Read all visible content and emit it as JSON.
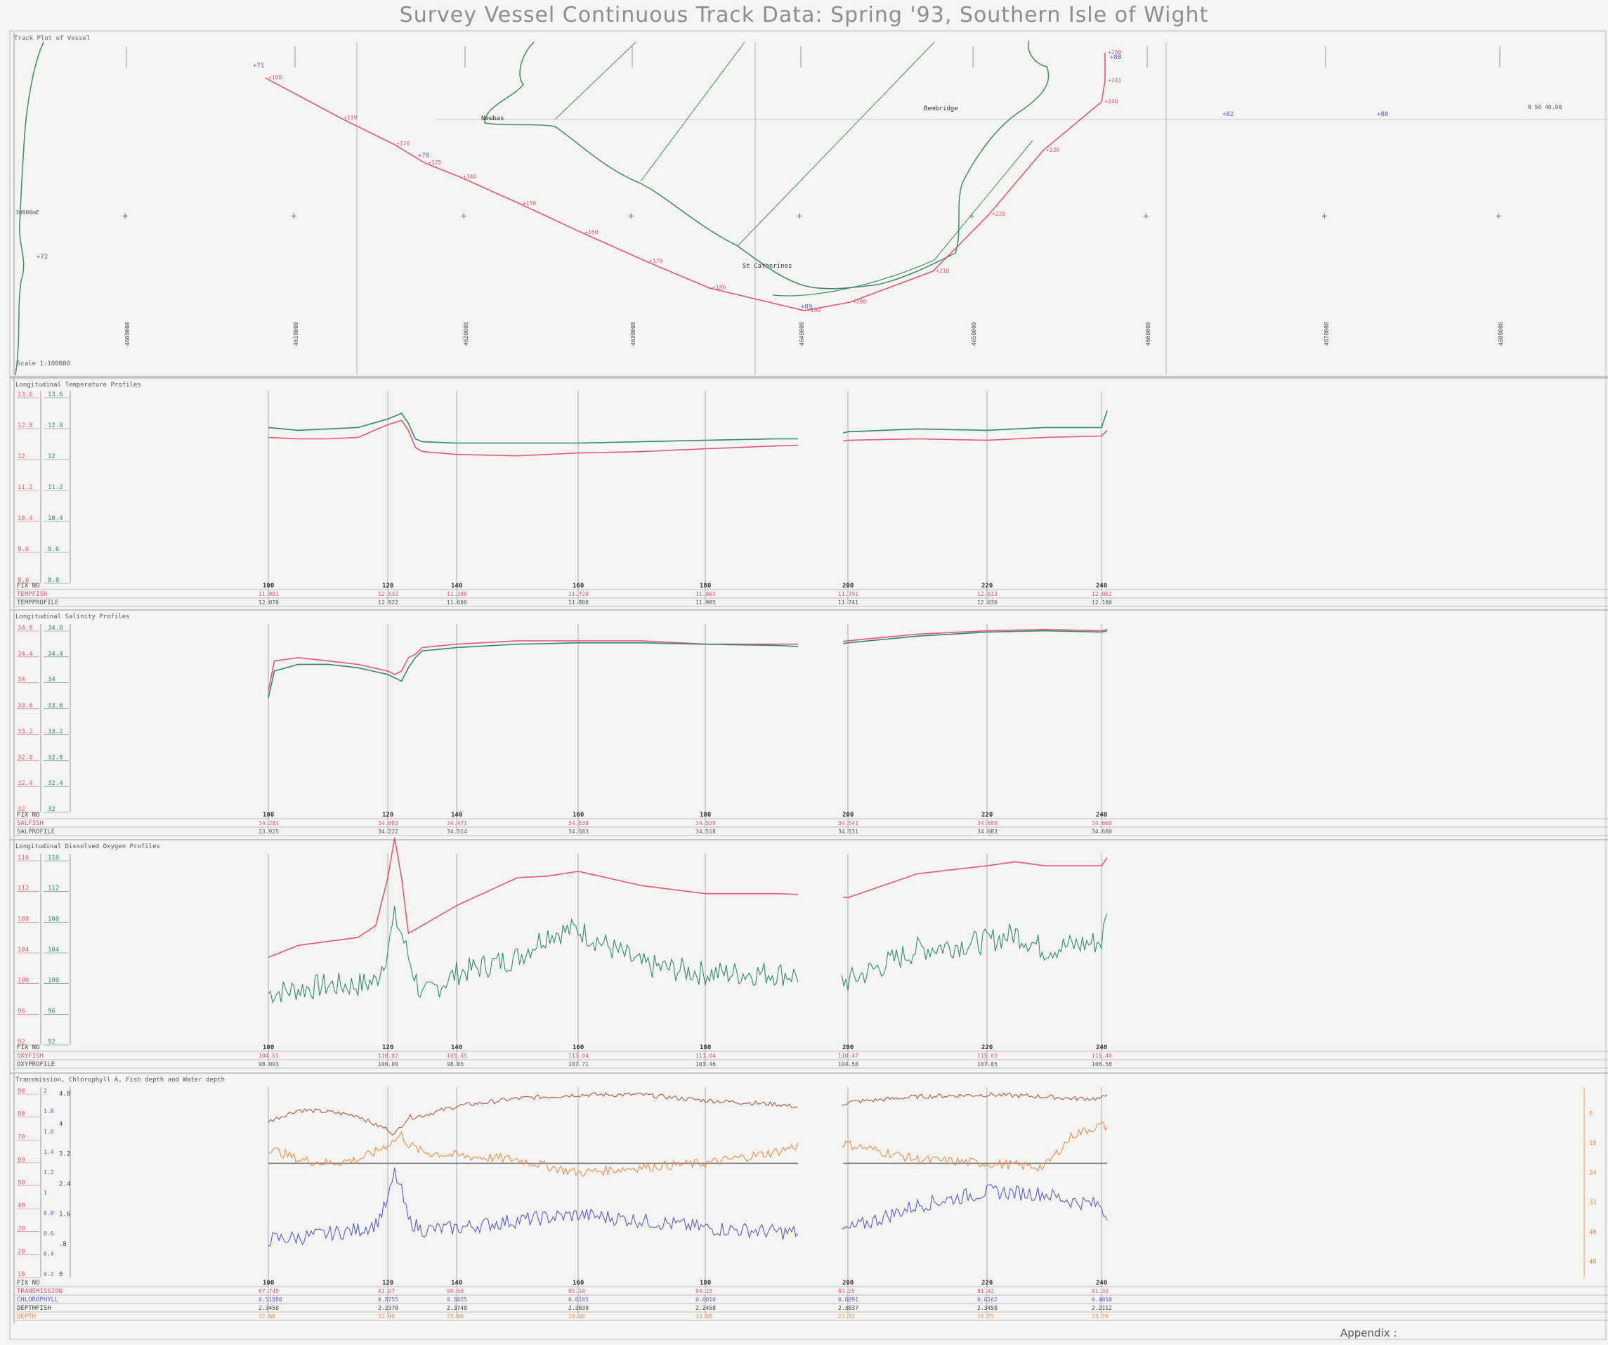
{
  "page": {
    "title": "Survey Vessel Continuous Track Data: Spring '93, Southern Isle of Wight",
    "footer": "Appendix :"
  },
  "colors": {
    "red": "#e8557a",
    "green": "#2f8a6c",
    "blue": "#5b59d0",
    "orange": "#f08a4a",
    "brown": "#a65a4a",
    "gray": "#777777",
    "coast": "#3c8a68"
  },
  "track_panel": {
    "title": "Track Plot of Vessel",
    "scale_label": "Scale 1:100000",
    "left_label": "30000mE",
    "right_label": "N 50 40.00",
    "place_names": [
      {
        "id": "newbay",
        "text": "Newbas",
        "lon": 685,
        "lat": 171
      },
      {
        "id": "bembridge",
        "text": "Bembridge",
        "lon": 1315,
        "lat": 157
      },
      {
        "id": "stcatherines",
        "text": "St Catherines",
        "lon": 1057,
        "lat": 381
      }
    ],
    "markers_blue": [
      {
        "text": "+71",
        "lon": 360,
        "lat": 96
      },
      {
        "text": "+72",
        "lon": 52,
        "lat": 368
      },
      {
        "text": "+70",
        "lon": 595,
        "lat": 224
      },
      {
        "text": "+89",
        "lon": 1140,
        "lat": 439
      },
      {
        "text": "+82",
        "lon": 1740,
        "lat": 165
      },
      {
        "text": "+88",
        "lon": 1960,
        "lat": 165
      },
      {
        "text": "+8B",
        "lon": 1580,
        "lat": 84
      }
    ],
    "track_fixes": [
      {
        "fix": "100",
        "lon": 378,
        "lat": 111
      },
      {
        "fix": "110",
        "lon": 485,
        "lat": 168
      },
      {
        "fix": "120",
        "lon": 560,
        "lat": 205
      },
      {
        "fix": "125",
        "lon": 605,
        "lat": 232
      },
      {
        "fix": "140",
        "lon": 655,
        "lat": 252
      },
      {
        "fix": "150",
        "lon": 740,
        "lat": 290
      },
      {
        "fix": "160",
        "lon": 828,
        "lat": 331
      },
      {
        "fix": "170",
        "lon": 920,
        "lat": 372
      },
      {
        "fix": "180",
        "lon": 1010,
        "lat": 410
      },
      {
        "fix": "190",
        "lon": 1145,
        "lat": 442
      },
      {
        "fix": "200",
        "lon": 1210,
        "lat": 430
      },
      {
        "fix": "210",
        "lon": 1328,
        "lat": 386
      },
      {
        "fix": "220",
        "lon": 1408,
        "lat": 305
      },
      {
        "fix": "230",
        "lon": 1485,
        "lat": 214
      },
      {
        "fix": "240",
        "lon": 1568,
        "lat": 145
      },
      {
        "fix": "241",
        "lon": 1573,
        "lat": 115
      },
      {
        "fix": "250",
        "lon": 1573,
        "lat": 75
      }
    ],
    "grid_labels": [
      "4600000",
      "4610000",
      "4620000",
      "4630000",
      "4640000",
      "4650000",
      "4660000",
      "4670000",
      "4680000"
    ]
  },
  "fix_x": {
    "fixes": [
      100,
      120,
      140,
      160,
      180,
      200,
      220,
      240
    ],
    "positions": [
      382,
      552,
      650,
      823,
      1004,
      1207,
      1405,
      1568
    ]
  },
  "chart_data": [
    {
      "type": "line",
      "id": "temperature",
      "title": "Longitudinal Temperature Profiles",
      "ylim": [
        6.8,
        13.6
      ],
      "ticks": [
        "13.6",
        "12.8",
        "12",
        "11.2",
        "10.4",
        "9.6",
        "8.8"
      ],
      "x": [
        100,
        105,
        110,
        115,
        120,
        124,
        126,
        128,
        130,
        140,
        150,
        160,
        170,
        180,
        190,
        196,
        200,
        210,
        220,
        230,
        240,
        241
      ],
      "series": [
        {
          "name": "TEMPFISH",
          "color_key": "green",
          "values": [
            12.3,
            12.2,
            12.25,
            12.3,
            12.6,
            12.8,
            12.45,
            11.9,
            11.8,
            11.75,
            11.75,
            11.75,
            11.8,
            11.85,
            11.9,
            11.9,
            12.15,
            12.25,
            12.2,
            12.3,
            12.3,
            12.9
          ]
        },
        {
          "name": "TEMPPROFILE",
          "color_key": "red",
          "values": [
            11.95,
            11.9,
            11.9,
            11.95,
            12.4,
            12.55,
            12.2,
            11.6,
            11.45,
            11.35,
            11.3,
            11.4,
            11.45,
            11.55,
            11.65,
            11.7,
            11.85,
            11.9,
            11.85,
            11.95,
            12.0,
            12.2
          ]
        }
      ],
      "fixes_row": [
        "100",
        "120",
        "140",
        "160",
        "180",
        "200",
        "220",
        "240"
      ],
      "row_labels": [
        "FIX NO",
        "TEMPFISH",
        "TEMPPROFILE"
      ],
      "row1": [
        "11.981",
        "12.533",
        "11.388",
        "11.728",
        "11.863",
        "11.791",
        "12.033",
        "12.052"
      ],
      "row2": [
        "12.078",
        "12.922",
        "11.686",
        "11.808",
        "11.985",
        "11.741",
        "12.030",
        "12.180"
      ]
    },
    {
      "type": "line",
      "id": "salinity",
      "title": "Longitudinal Salinity Profiles",
      "ylim": [
        32,
        34.8
      ],
      "ticks": [
        "34.8",
        "34.4",
        "34",
        "33.6",
        "33.2",
        "32.8",
        "32.4",
        "32"
      ],
      "x": [
        100,
        101,
        105,
        110,
        115,
        120,
        122,
        124,
        126,
        128,
        130,
        140,
        150,
        160,
        170,
        180,
        190,
        196,
        200,
        210,
        220,
        230,
        240,
        241
      ],
      "series": [
        {
          "name": "SALFISH",
          "color_key": "red",
          "values": [
            33.8,
            34.25,
            34.3,
            34.25,
            34.2,
            34.1,
            34.05,
            34.1,
            34.3,
            34.35,
            34.45,
            34.5,
            34.55,
            34.55,
            34.55,
            34.5,
            34.5,
            34.5,
            34.55,
            34.65,
            34.7,
            34.72,
            34.7,
            34.72
          ]
        },
        {
          "name": "SALPROFILE",
          "color_key": "green",
          "values": [
            33.7,
            34.1,
            34.2,
            34.2,
            34.15,
            34.05,
            34.0,
            33.95,
            34.15,
            34.3,
            34.4,
            34.45,
            34.5,
            34.52,
            34.52,
            34.5,
            34.48,
            34.45,
            34.52,
            34.62,
            34.68,
            34.7,
            34.68,
            34.7
          ]
        }
      ],
      "fixes_row": [
        "100",
        "120",
        "140",
        "160",
        "180",
        "200",
        "220",
        "240"
      ],
      "row_labels": [
        "FIX NO",
        "SALFISH",
        "SALPROFILE"
      ],
      "row1": [
        "34.283",
        "34.083",
        "34.471",
        "34.538",
        "34.529",
        "34.541",
        "34.680",
        "34.660"
      ],
      "row2": [
        "33.925",
        "34.222",
        "34.514",
        "34.583",
        "34.518",
        "34.531",
        "34.083",
        "34.680"
      ]
    },
    {
      "type": "line",
      "id": "oxygen",
      "title": "Longitudinal Dissolved Oxygen Profiles",
      "ylim": [
        92,
        116
      ],
      "ticks": [
        "116",
        "112",
        "108",
        "104",
        "100",
        "96",
        "92"
      ],
      "x": [
        100,
        105,
        110,
        115,
        118,
        120,
        122,
        124,
        126,
        130,
        140,
        150,
        155,
        160,
        170,
        180,
        190,
        196,
        200,
        210,
        220,
        225,
        230,
        240,
        241
      ],
      "series": [
        {
          "name": "OXYFISH",
          "color_key": "red",
          "values": [
            103,
            104.5,
            105,
            105.5,
            107,
            113,
            118,
            113,
            106,
            107,
            109.5,
            113,
            113.2,
            113.8,
            112,
            111,
            111,
            110.8,
            110.5,
            113.5,
            114.5,
            115,
            114.5,
            114.5,
            115.5
          ]
        },
        {
          "name": "OXYPROFILE",
          "color_key": "green",
          "values": [
            98.5,
            99,
            99.5,
            99.5,
            100,
            104,
            108,
            106,
            103,
            98,
            101,
            103,
            106,
            106.5,
            102,
            101,
            101,
            100.5,
            100,
            104,
            105,
            106,
            104,
            105,
            108.5
          ]
        }
      ],
      "fixes_row": [
        "100",
        "120",
        "140",
        "160",
        "180",
        "200",
        "220",
        "240"
      ],
      "row_labels": [
        "FIX NO",
        "OXYFISH",
        "OXYPROFILE"
      ],
      "row1": [
        "104.61",
        "110.02",
        "105.85",
        "113.04",
        "111.04",
        "110.47",
        "115.03",
        "115.40"
      ],
      "row2": [
        "98.093",
        "106.09",
        "98.85",
        "107.71",
        "103.46",
        "104.58",
        "107.85",
        "106.58"
      ]
    },
    {
      "type": "line",
      "id": "transmission",
      "title": "Transmission, Chlorophyll A, Fish depth and Water depth",
      "ylim": [
        0,
        100
      ],
      "ticks_left": [
        "90",
        "80",
        "70",
        "60",
        "50",
        "40",
        "30",
        "20",
        "10"
      ],
      "ticks_mid": [
        "2",
        "1.8",
        "1.6",
        "1.4",
        "1.2",
        "1",
        "0.8",
        "0.6",
        "0.4",
        "0.2"
      ],
      "ticks_inner": [
        "4.8",
        "4",
        "3.2",
        "2.4",
        "1.6",
        ".8",
        "0"
      ],
      "ticks_right": [
        "8",
        "16",
        "24",
        "32",
        "40",
        "48"
      ],
      "x": [
        100,
        105,
        110,
        115,
        118,
        120,
        122,
        124,
        126,
        130,
        140,
        150,
        160,
        170,
        180,
        190,
        196,
        200,
        210,
        220,
        230,
        235,
        240,
        241
      ],
      "series": [
        {
          "name": "TRANSMISSION",
          "color_key": "brown",
          "values": [
            82,
            88,
            87,
            85,
            80,
            78,
            75,
            80,
            84,
            85,
            90,
            94,
            96,
            96,
            93,
            91,
            88,
            92,
            95,
            96,
            95,
            94,
            94,
            96
          ]
        },
        {
          "name": "CHLOROPHYLL",
          "color_key": "blue",
          "values": [
            20,
            21,
            23,
            25,
            28,
            40,
            55,
            45,
            30,
            25,
            26,
            30,
            33,
            30,
            26,
            24,
            23,
            25,
            38,
            45,
            44,
            40,
            38,
            30
          ]
        },
        {
          "name": "FISH DEPTH",
          "color_key": "gray",
          "values": [
            60,
            60,
            60,
            60,
            60,
            60,
            60,
            60,
            60,
            60,
            60,
            60,
            60,
            60,
            60,
            60,
            60,
            60,
            60,
            60,
            60,
            60,
            60,
            60
          ]
        },
        {
          "name": "WATER DEPTH",
          "color_key": "orange",
          "values": [
            68,
            62,
            60,
            62,
            66,
            70,
            72,
            75,
            70,
            66,
            64,
            62,
            55,
            58,
            60,
            66,
            73,
            70,
            62,
            60,
            58,
            75,
            80,
            79
          ]
        }
      ],
      "fixes_row": [
        "100",
        "120",
        "140",
        "160",
        "180",
        "200",
        "220",
        "240"
      ],
      "row_labels": [
        "FIX NO",
        "TRANSMISSION",
        "CHLOROPHYLL",
        "DEPTHFISH",
        "DEPTH"
      ],
      "row1": [
        "67.745",
        "81.07",
        "80.50",
        "85.10",
        "84.15",
        "83.25",
        "81.42",
        "81.33"
      ],
      "row2": [
        "0.51880",
        "0.8755",
        "0.5025",
        "0.6195",
        "0.6010",
        "0.6091",
        "0.6162",
        "0.4050"
      ],
      "row3": [
        "2.3458",
        "2.2378",
        "2.3748",
        "2.3839",
        "2.2458",
        "2.3837",
        "2.3458",
        "2.2112"
      ],
      "row4": [
        "32.68",
        "32.95",
        "25.98",
        "28.08",
        "33.85",
        "23.32",
        "26.75",
        "25.70"
      ]
    }
  ]
}
